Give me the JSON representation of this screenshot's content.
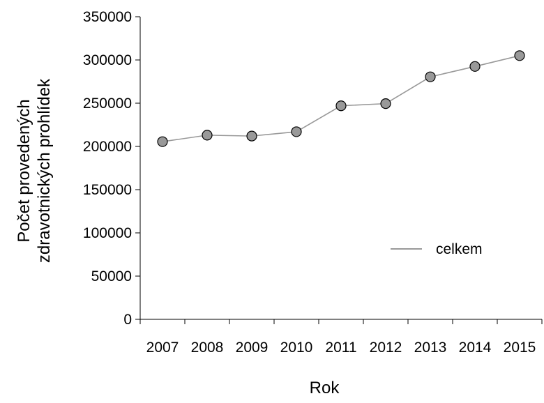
{
  "chart_data": {
    "type": "line",
    "categories": [
      "2007",
      "2008",
      "2009",
      "2010",
      "2011",
      "2012",
      "2013",
      "2014",
      "2015"
    ],
    "series": [
      {
        "name": "celkem",
        "values": [
          205500,
          213000,
          212000,
          217000,
          247000,
          249500,
          280500,
          292500,
          305000
        ],
        "color": "#999999",
        "marker_fill": "#999999",
        "marker_stroke": "#000000"
      }
    ],
    "xlabel": "Rok",
    "ylabel_lines": [
      "Počet provedených",
      "zdravotnických prohlídek"
    ],
    "ylim": [
      0,
      350000
    ],
    "yticks": [
      "0",
      "50000",
      "100000",
      "150000",
      "200000",
      "250000",
      "300000",
      "350000"
    ],
    "grid": false,
    "legend_position": "right"
  }
}
